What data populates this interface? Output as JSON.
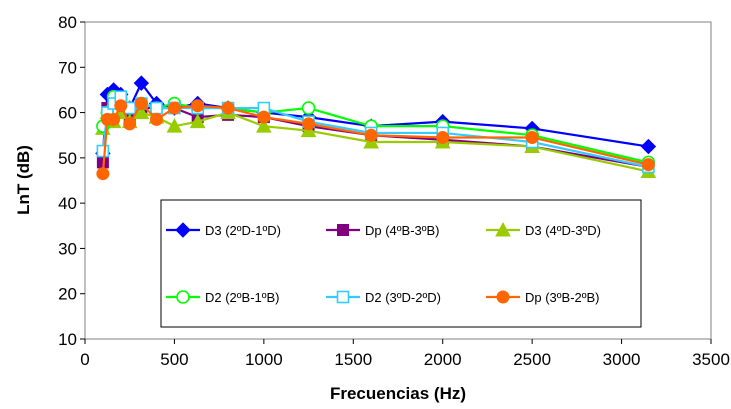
{
  "chart_data": {
    "type": "line",
    "title": "",
    "xlabel": "Frecuencias (Hz)",
    "ylabel": "LnT (dB)",
    "xlim": [
      0,
      3500
    ],
    "ylim": [
      10,
      80
    ],
    "xticks": [
      0,
      500,
      1000,
      1500,
      2000,
      2500,
      3000,
      3500
    ],
    "yticks": [
      10,
      20,
      30,
      40,
      50,
      60,
      70,
      80
    ],
    "grid": false,
    "legend_position": "inside-bottom-center",
    "x": [
      100,
      125,
      160,
      200,
      250,
      315,
      400,
      500,
      630,
      800,
      1000,
      1250,
      1600,
      2000,
      2500,
      3150
    ],
    "series": [
      {
        "name": "D3 (2ºD-1ºD)",
        "color": "#0000ff",
        "marker": "diamond",
        "values": [
          51,
          64,
          65,
          64,
          61,
          66.5,
          62,
          61,
          62,
          61,
          60,
          59,
          57,
          58,
          56.5,
          52.5
        ]
      },
      {
        "name": "Dp (4ºB-3ºB)",
        "color": "#800080",
        "marker": "square",
        "values": [
          49,
          61,
          62,
          63,
          59,
          61,
          61,
          61,
          59,
          59.5,
          59,
          57,
          55,
          54,
          52.5,
          48
        ]
      },
      {
        "name": "D3 (4ºD-3ºD)",
        "color": "#99cc00",
        "marker": "triangle",
        "values": [
          56.5,
          60,
          58,
          60,
          58,
          60,
          59,
          57,
          58,
          60,
          57,
          56,
          53.5,
          53.5,
          52.5,
          47
        ]
      },
      {
        "name": "D2 (2ºB-1ºB)",
        "color": "#00ff00",
        "marker": "circle-open",
        "values": [
          57,
          60,
          63.5,
          63,
          61,
          62,
          61,
          62,
          61,
          61,
          60,
          61,
          57,
          57,
          55,
          49
        ]
      },
      {
        "name": "D2 (3ºD-2ºD)",
        "color": "#33ccff",
        "marker": "square-open",
        "values": [
          51.5,
          60,
          62,
          63.5,
          61,
          62,
          61,
          61,
          61,
          61,
          61,
          58,
          55.5,
          55.5,
          53.5,
          48
        ]
      },
      {
        "name": "Dp (3ºB-2ºB)",
        "color": "#ff6600",
        "marker": "circle",
        "values": [
          46.5,
          58.5,
          58.5,
          61.5,
          57.5,
          62,
          58.5,
          61,
          61.5,
          61,
          59,
          57.5,
          55,
          54.5,
          54.5,
          48.5
        ]
      }
    ]
  }
}
